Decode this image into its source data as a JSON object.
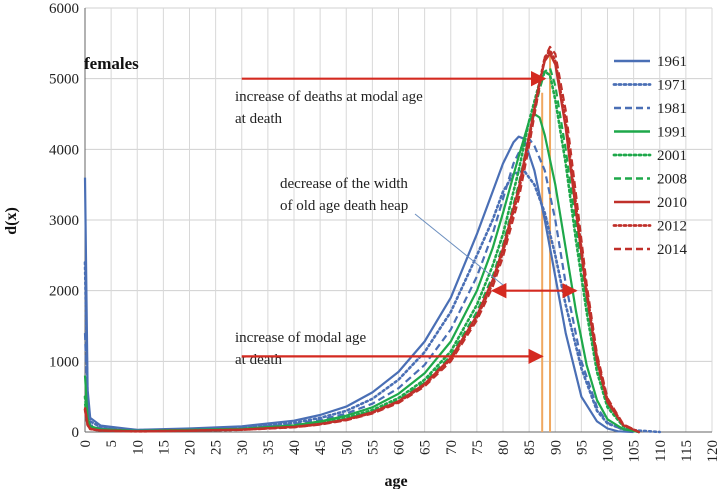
{
  "chart_data": {
    "type": "line",
    "title": "",
    "panel_label": "females",
    "xlabel": "age",
    "ylabel": "d(x)",
    "xlim": [
      0,
      120
    ],
    "ylim": [
      0,
      6000
    ],
    "x_ticks": [
      0,
      5,
      10,
      15,
      20,
      25,
      30,
      35,
      40,
      45,
      50,
      55,
      60,
      65,
      70,
      75,
      80,
      85,
      90,
      95,
      100,
      105,
      110,
      115,
      120
    ],
    "y_ticks": [
      0,
      1000,
      2000,
      3000,
      4000,
      5000,
      6000
    ],
    "grid": true,
    "legend_position": "right",
    "series": [
      {
        "name": "1961",
        "color": "#4a6fb5",
        "dash": "solid",
        "x": [
          0,
          0.5,
          1,
          3,
          10,
          20,
          30,
          40,
          45,
          50,
          55,
          60,
          65,
          70,
          75,
          78,
          80,
          82,
          83,
          84,
          86,
          88,
          90,
          92,
          95,
          98,
          100,
          102,
          105
        ],
        "y": [
          3600,
          600,
          200,
          90,
          30,
          50,
          80,
          160,
          240,
          360,
          560,
          850,
          1280,
          1900,
          2800,
          3400,
          3800,
          4100,
          4180,
          4150,
          3700,
          3000,
          2200,
          1400,
          500,
          150,
          50,
          10,
          0
        ]
      },
      {
        "name": "1971",
        "color": "#4a6fb5",
        "dash": "dotted",
        "x": [
          0,
          0.5,
          1,
          3,
          10,
          20,
          30,
          40,
          45,
          50,
          55,
          60,
          65,
          70,
          75,
          78,
          80,
          82,
          84,
          86,
          88,
          90,
          92,
          95,
          98,
          100,
          103,
          106,
          110
        ],
        "y": [
          2400,
          400,
          150,
          70,
          25,
          40,
          65,
          130,
          200,
          300,
          470,
          740,
          1130,
          1700,
          2500,
          3000,
          3400,
          3650,
          3700,
          3500,
          3100,
          2500,
          1800,
          900,
          300,
          120,
          40,
          20,
          0
        ]
      },
      {
        "name": "1981",
        "color": "#4a6fb5",
        "dash": "dashed",
        "x": [
          0,
          0.5,
          1,
          3,
          10,
          20,
          30,
          40,
          45,
          50,
          55,
          60,
          65,
          70,
          75,
          78,
          80,
          82,
          84,
          85,
          86,
          88,
          90,
          92,
          95,
          98,
          100,
          103,
          106
        ],
        "y": [
          1400,
          300,
          100,
          50,
          20,
          35,
          55,
          110,
          170,
          260,
          400,
          620,
          950,
          1450,
          2200,
          2800,
          3300,
          3800,
          4100,
          4150,
          4050,
          3700,
          3000,
          2100,
          1000,
          350,
          130,
          30,
          0
        ]
      },
      {
        "name": "1991",
        "color": "#1ea84a",
        "dash": "solid",
        "x": [
          0,
          0.5,
          1,
          3,
          10,
          20,
          30,
          40,
          45,
          50,
          55,
          60,
          65,
          70,
          75,
          78,
          80,
          83,
          85,
          86,
          87,
          88,
          90,
          92,
          94,
          96,
          98,
          100,
          103,
          106
        ],
        "y": [
          800,
          200,
          80,
          40,
          15,
          30,
          45,
          95,
          150,
          230,
          350,
          540,
          830,
          1280,
          2000,
          2600,
          3100,
          3900,
          4400,
          4500,
          4450,
          4200,
          3500,
          2600,
          1700,
          950,
          450,
          180,
          40,
          0
        ]
      },
      {
        "name": "2001",
        "color": "#1ea84a",
        "dash": "dotted",
        "x": [
          0,
          0.5,
          1,
          3,
          10,
          20,
          30,
          40,
          45,
          50,
          55,
          60,
          65,
          70,
          75,
          78,
          80,
          83,
          85,
          87,
          88,
          89,
          90,
          92,
          94,
          96,
          98,
          100,
          103,
          106
        ],
        "y": [
          500,
          150,
          60,
          30,
          12,
          25,
          40,
          85,
          130,
          200,
          310,
          480,
          740,
          1140,
          1800,
          2350,
          2800,
          3700,
          4400,
          4950,
          5100,
          5050,
          4700,
          3800,
          2700,
          1700,
          850,
          350,
          80,
          0
        ]
      },
      {
        "name": "2008",
        "color": "#1ea84a",
        "dash": "dashed",
        "x": [
          0,
          0.5,
          1,
          3,
          10,
          20,
          30,
          40,
          45,
          50,
          55,
          60,
          65,
          70,
          75,
          78,
          80,
          83,
          85,
          87,
          88,
          89,
          90,
          92,
          94,
          96,
          98,
          100,
          103,
          106
        ],
        "y": [
          400,
          120,
          50,
          25,
          10,
          22,
          36,
          78,
          120,
          185,
          290,
          450,
          700,
          1080,
          1700,
          2200,
          2650,
          3500,
          4200,
          4850,
          5100,
          5150,
          4900,
          4000,
          2900,
          1850,
          950,
          400,
          90,
          0
        ]
      },
      {
        "name": "2010",
        "color": "#c0302a",
        "dash": "solid",
        "x": [
          0,
          0.5,
          1,
          3,
          10,
          20,
          30,
          40,
          45,
          50,
          55,
          60,
          65,
          70,
          75,
          78,
          80,
          83,
          85,
          87,
          88,
          89,
          90,
          92,
          94,
          96,
          98,
          100,
          103,
          106
        ],
        "y": [
          350,
          110,
          45,
          22,
          10,
          20,
          34,
          74,
          115,
          178,
          280,
          435,
          680,
          1050,
          1650,
          2150,
          2600,
          3450,
          4200,
          4950,
          5250,
          5350,
          5200,
          4300,
          3100,
          1950,
          1000,
          420,
          95,
          0
        ]
      },
      {
        "name": "2012",
        "color": "#c0302a",
        "dash": "dotted",
        "x": [
          0,
          0.5,
          1,
          3,
          10,
          20,
          30,
          40,
          45,
          50,
          55,
          60,
          65,
          70,
          75,
          78,
          80,
          83,
          85,
          87,
          88,
          89,
          90,
          92,
          94,
          96,
          98,
          100,
          103,
          106
        ],
        "y": [
          320,
          100,
          42,
          20,
          9,
          19,
          32,
          70,
          110,
          172,
          272,
          425,
          665,
          1030,
          1620,
          2100,
          2550,
          3400,
          4150,
          4950,
          5300,
          5400,
          5250,
          4400,
          3200,
          2000,
          1050,
          450,
          100,
          0
        ]
      },
      {
        "name": "2014",
        "color": "#c0302a",
        "dash": "dashed",
        "x": [
          0,
          0.5,
          1,
          3,
          10,
          20,
          30,
          40,
          45,
          50,
          55,
          60,
          65,
          70,
          75,
          78,
          80,
          83,
          85,
          87,
          88,
          89,
          90,
          92,
          94,
          96,
          98,
          100,
          103,
          106
        ],
        "y": [
          300,
          95,
          40,
          19,
          8,
          18,
          30,
          66,
          105,
          165,
          262,
          410,
          645,
          1000,
          1580,
          2050,
          2480,
          3300,
          4050,
          4900,
          5300,
          5450,
          5350,
          4550,
          3350,
          2100,
          1100,
          480,
          110,
          0
        ]
      }
    ],
    "annotations": [
      {
        "text_lines": [
          "increase of deaths at modal age",
          "at death"
        ],
        "arrow": "right",
        "arrow_from": [
          30,
          5000
        ],
        "arrow_to": [
          88,
          5000
        ]
      },
      {
        "text_lines": [
          "decrease of the width",
          "of old age death heap"
        ],
        "arrow": "double",
        "arrow_from": [
          78,
          2000
        ],
        "arrow_to": [
          94,
          2000
        ]
      },
      {
        "text_lines": [
          "increase of modal age",
          "at death"
        ],
        "arrow": "right",
        "arrow_from": [
          30,
          1070
        ],
        "arrow_to": [
          87.5,
          1070
        ]
      }
    ],
    "modal_age_markers": [
      {
        "x": 87.5,
        "y_top": 4800,
        "color": "#f0a860"
      },
      {
        "x": 89,
        "y_top": 5400,
        "color": "#f0a860"
      }
    ]
  }
}
